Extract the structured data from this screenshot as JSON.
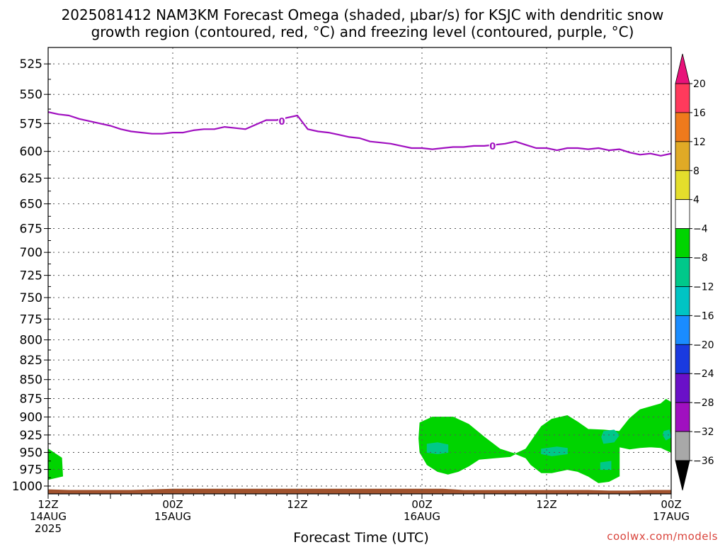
{
  "title_line1": "2025081412 NAM3KM Forecast Omega (shaded, μbar/s) for KSJC with dendritic snow",
  "title_line2": "growth region (contoured, red, °C) and freezing level (contoured, purple, °C)",
  "credit": "coolwx.com/models",
  "chart_data": {
    "type": "area",
    "title": "2025081412 NAM3KM Forecast Omega (shaded, μbar/s) for KSJC with dendritic snow growth region (contoured, red, °C) and freezing level (contoured, purple, °C)",
    "xlabel": "Forecast Time (UTC)",
    "ylabel": "",
    "x_unit": "forecast hour",
    "xlim": [
      0,
      60
    ],
    "ylim": [
      1012,
      512
    ],
    "y_scale": "log",
    "y_ticks": [
      525,
      550,
      575,
      600,
      625,
      650,
      675,
      700,
      725,
      750,
      775,
      800,
      825,
      850,
      875,
      900,
      925,
      950,
      975,
      1000
    ],
    "x_ticks": [
      {
        "x": 0,
        "lines": [
          "12Z",
          "14AUG",
          "2025"
        ]
      },
      {
        "x": 12,
        "lines": [
          "00Z",
          "15AUG"
        ]
      },
      {
        "x": 24,
        "lines": [
          "12Z"
        ]
      },
      {
        "x": 36,
        "lines": [
          "00Z",
          "16AUG"
        ]
      },
      {
        "x": 48,
        "lines": [
          "12Z"
        ]
      },
      {
        "x": 60,
        "lines": [
          "00Z",
          "17AUG"
        ]
      }
    ],
    "grid": true,
    "colorbar": {
      "levels": [
        "20",
        "16",
        "12",
        "8",
        "4",
        "−4",
        "−8",
        "−12",
        "−16",
        "−20",
        "−24",
        "−28",
        "−32",
        "−36"
      ],
      "colors": [
        "#ff3a5c",
        "#ef7a1c",
        "#e0aa26",
        "#e4de2c",
        "#ffffff",
        "#00d400",
        "#00c88a",
        "#00c4c4",
        "#1a8cff",
        "#1a3ae0",
        "#6a10c8",
        "#a010c0",
        "#a8a8a8"
      ],
      "top_arrow_color": "#e8127a",
      "bottom_arrow_color": "#000000"
    },
    "freezing_level": {
      "name": "freezing level",
      "color": "#a010c0",
      "label": "0",
      "label_points": [
        [
          22.5,
          573
        ],
        [
          42.8,
          595
        ]
      ],
      "points": [
        [
          0,
          565
        ],
        [
          1,
          567
        ],
        [
          2,
          568
        ],
        [
          3,
          571
        ],
        [
          4,
          573
        ],
        [
          5,
          575
        ],
        [
          6,
          577
        ],
        [
          7,
          580
        ],
        [
          8,
          582
        ],
        [
          9,
          583
        ],
        [
          10,
          584
        ],
        [
          11,
          584
        ],
        [
          12,
          583
        ],
        [
          13,
          583
        ],
        [
          14,
          581
        ],
        [
          15,
          580
        ],
        [
          16,
          580
        ],
        [
          17,
          578
        ],
        [
          18,
          579
        ],
        [
          19,
          580
        ],
        [
          20,
          576
        ],
        [
          21,
          572
        ],
        [
          22,
          572
        ],
        [
          23,
          570
        ],
        [
          24,
          568
        ],
        [
          25,
          580
        ],
        [
          26,
          582
        ],
        [
          27,
          583
        ],
        [
          28,
          585
        ],
        [
          29,
          587
        ],
        [
          30,
          588
        ],
        [
          31,
          591
        ],
        [
          32,
          592
        ],
        [
          33,
          593
        ],
        [
          34,
          595
        ],
        [
          35,
          597
        ],
        [
          36,
          597
        ],
        [
          37,
          598
        ],
        [
          38,
          597
        ],
        [
          39,
          596
        ],
        [
          40,
          596
        ],
        [
          41,
          595
        ],
        [
          42,
          595
        ],
        [
          43,
          594
        ],
        [
          44,
          593
        ],
        [
          45,
          591
        ],
        [
          46,
          594
        ],
        [
          47,
          597
        ],
        [
          48,
          597
        ],
        [
          49,
          599
        ],
        [
          50,
          597
        ],
        [
          51,
          597
        ],
        [
          52,
          598
        ],
        [
          53,
          597
        ],
        [
          54,
          599
        ],
        [
          55,
          598
        ],
        [
          56,
          601
        ],
        [
          57,
          603
        ],
        [
          58,
          602
        ],
        [
          59,
          604
        ],
        [
          60,
          602
        ]
      ]
    },
    "omega_regions": [
      {
        "range": "−8 to −4",
        "color": "#00d400",
        "points": [
          [
            0,
            945
          ],
          [
            1.3,
            958
          ],
          [
            1.4,
            985
          ],
          [
            0,
            990
          ]
        ]
      },
      {
        "range": "−8 to −4",
        "color": "#00d400",
        "points": [
          [
            35.8,
            908
          ],
          [
            37,
            900
          ],
          [
            39,
            900
          ],
          [
            40.5,
            910
          ],
          [
            42,
            928
          ],
          [
            43.5,
            945
          ],
          [
            44.5,
            950
          ],
          [
            45,
            952
          ],
          [
            44.5,
            956
          ],
          [
            43,
            958
          ],
          [
            41.5,
            960
          ],
          [
            40.5,
            970
          ],
          [
            39.5,
            978
          ],
          [
            38.5,
            982
          ],
          [
            37.5,
            978
          ],
          [
            36.5,
            968
          ],
          [
            35.8,
            950
          ],
          [
            35.7,
            930
          ]
        ]
      },
      {
        "range": "−12 to −8",
        "color": "#00c88a",
        "points": [
          [
            36.5,
            938
          ],
          [
            37.5,
            936
          ],
          [
            38.5,
            939
          ],
          [
            38.5,
            950
          ],
          [
            37.5,
            952
          ],
          [
            36.5,
            950
          ]
        ]
      },
      {
        "range": "−8 to −4",
        "color": "#00d400",
        "points": [
          [
            45,
            952
          ],
          [
            46,
            945
          ],
          [
            47.5,
            913
          ],
          [
            48.5,
            903
          ],
          [
            50,
            898
          ],
          [
            51,
            907
          ],
          [
            52,
            917
          ],
          [
            53.5,
            918
          ],
          [
            55,
            920
          ],
          [
            56,
            902
          ],
          [
            57,
            890
          ],
          [
            59,
            882
          ],
          [
            59.5,
            876
          ],
          [
            60,
            880
          ],
          [
            60,
            950
          ],
          [
            59,
            943
          ],
          [
            58,
            942
          ],
          [
            57,
            943
          ],
          [
            56,
            945
          ],
          [
            55,
            942
          ],
          [
            55,
            960
          ],
          [
            55,
            985
          ],
          [
            54,
            993
          ],
          [
            53,
            995
          ],
          [
            52,
            985
          ],
          [
            51,
            978
          ],
          [
            50,
            975
          ],
          [
            48.5,
            980
          ],
          [
            47.5,
            980
          ],
          [
            46.5,
            968
          ],
          [
            46,
            958
          ]
        ]
      },
      {
        "range": "−12 to −8",
        "color": "#00c88a",
        "points": [
          [
            47.5,
            945
          ],
          [
            49,
            942
          ],
          [
            50,
            944
          ],
          [
            50,
            952
          ],
          [
            48.5,
            955
          ],
          [
            47.5,
            952
          ]
        ]
      },
      {
        "range": "−12 to −8",
        "color": "#00c88a",
        "points": [
          [
            53.5,
            920
          ],
          [
            54.5,
            918
          ],
          [
            55,
            925
          ],
          [
            54.5,
            935
          ],
          [
            53.5,
            937
          ],
          [
            53.3,
            928
          ]
        ]
      },
      {
        "range": "−12 to −8",
        "color": "#00c88a",
        "points": [
          [
            53.2,
            965
          ],
          [
            54.2,
            963
          ],
          [
            54.2,
            975
          ],
          [
            53.2,
            975
          ]
        ]
      },
      {
        "range": "−12 to −8",
        "color": "#00c88a",
        "points": [
          [
            59.3,
            920
          ],
          [
            59.8,
            918
          ],
          [
            60,
            928
          ],
          [
            59.5,
            932
          ],
          [
            59.2,
            925
          ]
        ]
      }
    ],
    "terrain": {
      "name": "surface",
      "color": "#a0522d",
      "points": [
        [
          0,
          1005
        ],
        [
          2,
          1006
        ],
        [
          4,
          1006
        ],
        [
          6,
          1006
        ],
        [
          8,
          1006
        ],
        [
          10,
          1005
        ],
        [
          12,
          1004
        ],
        [
          14,
          1004
        ],
        [
          16,
          1004
        ],
        [
          18,
          1004
        ],
        [
          20,
          1004
        ],
        [
          22,
          1004
        ],
        [
          24,
          1004
        ],
        [
          26,
          1004
        ],
        [
          28,
          1004
        ],
        [
          30,
          1004
        ],
        [
          32,
          1004
        ],
        [
          34,
          1004
        ],
        [
          36,
          1004
        ],
        [
          38,
          1004
        ],
        [
          40,
          1006
        ],
        [
          42,
          1006
        ],
        [
          44,
          1006
        ],
        [
          46,
          1006
        ],
        [
          48,
          1006
        ],
        [
          50,
          1006
        ],
        [
          52,
          1006
        ],
        [
          54,
          1007
        ],
        [
          56,
          1007
        ],
        [
          58,
          1006
        ],
        [
          60,
          1006
        ]
      ]
    }
  }
}
